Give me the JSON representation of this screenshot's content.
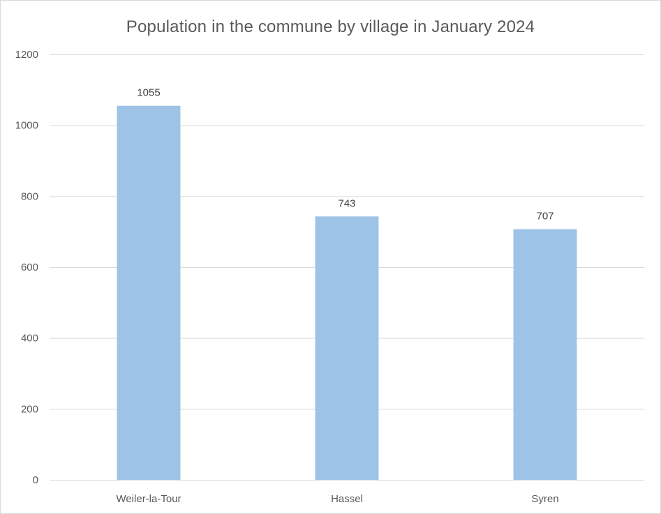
{
  "chart_data": {
    "type": "bar",
    "title": "Population in the commune by village in January 2024",
    "categories": [
      "Weiler-la-Tour",
      "Hassel",
      "Syren"
    ],
    "values": [
      1055,
      743,
      707
    ],
    "data_labels": [
      "1055",
      "743",
      "707"
    ],
    "ylim": [
      0,
      1200
    ],
    "yticks": [
      0,
      200,
      400,
      600,
      800,
      1000,
      1200
    ],
    "grid": true,
    "legend": "none",
    "bar_color": "#9dc3e6",
    "grid_color": "#d9d9d9"
  }
}
